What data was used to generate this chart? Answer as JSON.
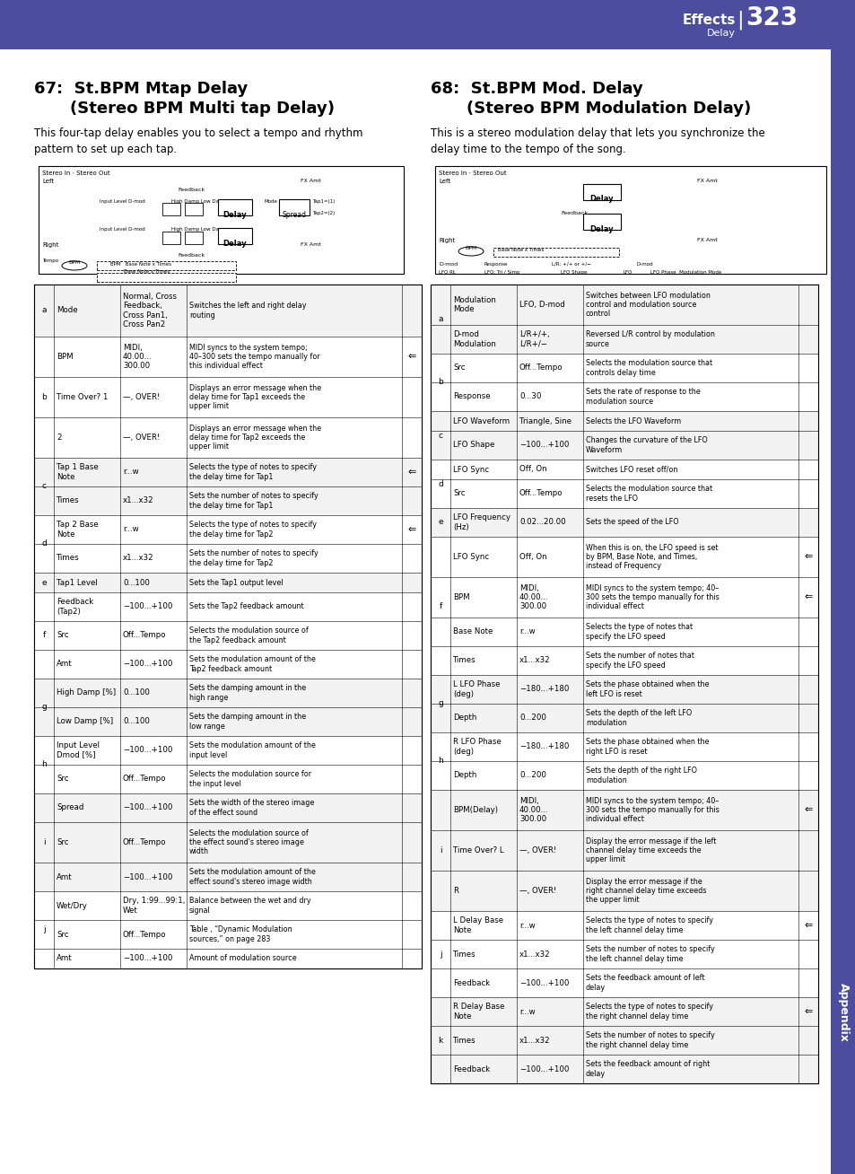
{
  "page_num": "323",
  "header_color": "#4d4d9f",
  "sidebar_color": "#4d4d9f",
  "bg_color": "#ffffff",
  "header_label": "Effects",
  "header_sublabel": "Delay",
  "section1_title": "67:  St.BPM Mtap Delay",
  "section1_subtitle": "(Stereo BPM Multi tap Delay)",
  "section1_desc": "This four-tap delay enables you to select a tempo and rhythm\npattern to set up each tap.",
  "section2_title": "68:  St.BPM Mod. Delay",
  "section2_subtitle": "(Stereo BPM Modulation Delay)",
  "section2_desc": "This is a stereo modulation delay that lets you synchronize the\ndelay time to the tempo of the song.",
  "table1_rows": [
    [
      "a",
      "Mode",
      "Normal, Cross\nFeedback,\nCross Pan1,\nCross Pan2",
      "Switches the left and right delay\nrouting",
      false
    ],
    [
      "b",
      "BPM",
      "MIDI,\n40.00...\n300.00",
      "MIDI syncs to the system tempo;\n40–300 sets the tempo manually for\nthis individual effect",
      true
    ],
    [
      "b",
      "Time Over? 1",
      "—, OVER!",
      "Displays an error message when the\ndelay time for Tap1 exceeds the\nupper limit",
      false
    ],
    [
      "b",
      "2",
      "—, OVER!",
      "Displays an error message when the\ndelay time for Tap2 exceeds the\nupper limit",
      false
    ],
    [
      "c",
      "Tap 1 Base\nNote",
      "r...w",
      "Selects the type of notes to specify\nthe delay time for Tap1",
      true
    ],
    [
      "c",
      "Times",
      "x1...x32",
      "Sets the number of notes to specify\nthe delay time for Tap1",
      false
    ],
    [
      "d",
      "Tap 2 Base\nNote",
      "r...w",
      "Selects the type of notes to specify\nthe delay time for Tap2",
      true
    ],
    [
      "d",
      "Times",
      "x1...x32",
      "Sets the number of notes to specify\nthe delay time for Tap2",
      false
    ],
    [
      "e",
      "Tap1 Level",
      "0...100",
      "Sets the Tap1 output level",
      false
    ],
    [
      "f",
      "Feedback\n(Tap2)",
      "−100...+100",
      "Sets the Tap2 feedback amount",
      false
    ],
    [
      "f",
      "Src",
      "Off...Tempo",
      "Selects the modulation source of\nthe Tap2 feedback amount",
      false
    ],
    [
      "f",
      "Amt",
      "−100...+100",
      "Sets the modulation amount of the\nTap2 feedback amount",
      false
    ],
    [
      "g",
      "High Damp [%]",
      "0...100",
      "Sets the damping amount in the\nhigh range",
      false
    ],
    [
      "g",
      "Low Damp [%]",
      "0...100",
      "Sets the damping amount in the\nlow range",
      false
    ],
    [
      "h",
      "Input Level\nDmod [%]",
      "−100...+100",
      "Sets the modulation amount of the\ninput level",
      false
    ],
    [
      "h",
      "Src",
      "Off...Tempo",
      "Selects the modulation source for\nthe input level",
      false
    ],
    [
      "i",
      "Spread",
      "−100...+100",
      "Sets the width of the stereo image\nof the effect sound",
      false
    ],
    [
      "i",
      "Src",
      "Off...Tempo",
      "Selects the modulation source of\nthe effect sound's stereo image\nwidth",
      false
    ],
    [
      "i",
      "Amt",
      "−100...+100",
      "Sets the modulation amount of the\neffect sound's stereo image width",
      false
    ],
    [
      "j",
      "Wet/Dry",
      "Dry, 1:99...99:1,\nWet",
      "Balance between the wet and dry\nsignal",
      false
    ],
    [
      "j",
      "Src",
      "Off...Tempo",
      "Table , “Dynamic Modulation\nsources,” on page 283",
      false
    ],
    [
      "j",
      "Amt",
      "−100...+100",
      "Amount of modulation source",
      false
    ]
  ],
  "table2_rows": [
    [
      "a",
      "Modulation\nMode",
      "LFO, D-mod",
      "Switches between LFO modulation\ncontrol and modulation source\ncontrol",
      false
    ],
    [
      "a",
      "D-mod\nModulation",
      "L/R+/+,\nL/R+/−",
      "Reversed L/R control by modulation\nsource",
      false
    ],
    [
      "b",
      "Src",
      "Off...Tempo",
      "Selects the modulation source that\ncontrols delay time",
      false
    ],
    [
      "b",
      "Response",
      "0...30",
      "Sets the rate of response to the\nmodulation source",
      false
    ],
    [
      "c",
      "LFO Waveform",
      "Triangle, Sine",
      "Selects the LFO Waveform",
      false
    ],
    [
      "c",
      "LFO Shape",
      "−100...+100",
      "Changes the curvature of the LFO\nWaveform",
      false
    ],
    [
      "d",
      "LFO Sync",
      "Off, On",
      "Switches LFO reset off/on",
      false
    ],
    [
      "d",
      "Src",
      "Off...Tempo",
      "Selects the modulation source that\nresets the LFO",
      false
    ],
    [
      "e",
      "LFO Frequency\n(Hz)",
      "0.02...20.00",
      "Sets the speed of the LFO",
      false
    ],
    [
      "f",
      "LFO Sync",
      "Off, On",
      "When this is on, the LFO speed is set\nby BPM, Base Note, and Times,\ninstead of Frequency",
      true
    ],
    [
      "f",
      "BPM",
      "MIDI,\n40.00...\n300.00",
      "MIDI syncs to the system tempo; 40–\n300 sets the tempo manually for this\nindividual effect",
      true
    ],
    [
      "f",
      "Base Note",
      "r...w",
      "Selects the type of notes that\nspecify the LFO speed",
      false
    ],
    [
      "f",
      "Times",
      "x1...x32",
      "Sets the number of notes that\nspecify the LFO speed",
      false
    ],
    [
      "g",
      "L LFO Phase\n(deg)",
      "−180...+180",
      "Sets the phase obtained when the\nleft LFO is reset",
      false
    ],
    [
      "g",
      "Depth",
      "0...200",
      "Sets the depth of the left LFO\nmodulation",
      false
    ],
    [
      "h",
      "R LFO Phase\n(deg)",
      "−180...+180",
      "Sets the phase obtained when the\nright LFO is reset",
      false
    ],
    [
      "h",
      "Depth",
      "0...200",
      "Sets the depth of the right LFO\nmodulation",
      false
    ],
    [
      "i",
      "BPM(Delay)",
      "MIDI,\n40.00...\n300.00",
      "MIDI syncs to the system tempo; 40–\n300 sets the tempo manually for this\nindividual effect",
      true
    ],
    [
      "i",
      "Time Over? L",
      "—, OVER!",
      "Display the error message if the left\nchannel delay time exceeds the\nupper limit",
      false
    ],
    [
      "i",
      "R",
      "—, OVER!",
      "Display the error message if the\nright channel delay time exceeds\nthe upper limit",
      false
    ],
    [
      "j",
      "L Delay Base\nNote",
      "r...w",
      "Selects the type of notes to specify\nthe left channel delay time",
      true
    ],
    [
      "j",
      "Times",
      "x1...x32",
      "Sets the number of notes to specify\nthe left channel delay time",
      false
    ],
    [
      "j",
      "Feedback",
      "−100...+100",
      "Sets the feedback amount of left\ndelay",
      false
    ],
    [
      "k",
      "R Delay Base\nNote",
      "r...w",
      "Selects the type of notes to specify\nthe right channel delay time",
      true
    ],
    [
      "k",
      "Times",
      "x1...x32",
      "Sets the number of notes to specify\nthe right channel delay time",
      false
    ],
    [
      "k",
      "Feedback",
      "−100...+100",
      "Sets the feedback amount of right\ndelay",
      false
    ]
  ]
}
